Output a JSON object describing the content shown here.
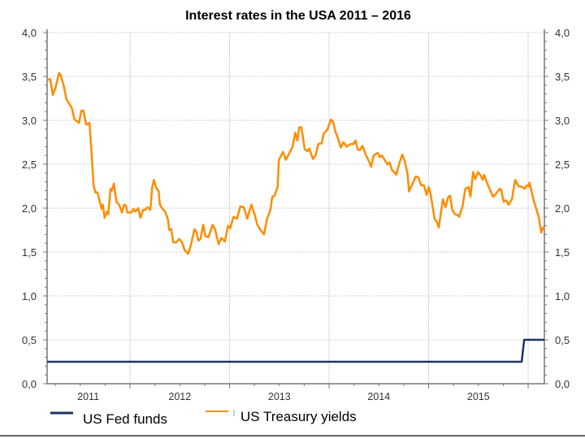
{
  "chart_data": {
    "type": "line",
    "title": "Interest rates in the USA 2011 – 2016",
    "xlabel": "",
    "ylabel": "",
    "xlim": [
      2011.167,
      2016.163
    ],
    "ylim": [
      0,
      4
    ],
    "grid": true,
    "legend_position": "bottom-left",
    "y_ticks": [
      "0,0",
      "0,5",
      "1,0",
      "1,5",
      "2,0",
      "2,5",
      "3,0",
      "3,5",
      "4,0"
    ],
    "y_tick_values": [
      0,
      0.5,
      1,
      1.5,
      2,
      2.5,
      3,
      3.5,
      4
    ],
    "x_tick_labels": [
      "2011",
      "2012",
      "2013",
      "2014",
      "2015"
    ],
    "x_label_positions": [
      2011.58,
      2012.5,
      2013.5,
      2014.5,
      2015.5
    ],
    "x_gridlines": [
      2012,
      2013,
      2014,
      2015,
      2016
    ],
    "colors": {
      "fed": "#1b3560",
      "treasury": "#ff8c00",
      "grid": "#c8c8c8",
      "axis": "#777777"
    },
    "series": [
      {
        "name": "US Fed funds",
        "color": "#1b3560",
        "points": [
          [
            2011.167,
            0.25
          ],
          [
            2015.935,
            0.25
          ],
          [
            2015.96,
            0.5
          ],
          [
            2016.163,
            0.5
          ]
        ]
      },
      {
        "name": "US Treasury yields",
        "color": "#ff8c00",
        "points": [
          [
            2011.167,
            3.46
          ],
          [
            2011.198,
            3.47
          ],
          [
            2011.224,
            3.29
          ],
          [
            2011.251,
            3.37
          ],
          [
            2011.287,
            3.54
          ],
          [
            2011.306,
            3.51
          ],
          [
            2011.333,
            3.4
          ],
          [
            2011.361,
            3.24
          ],
          [
            2011.415,
            3.14
          ],
          [
            2011.442,
            3.01
          ],
          [
            2011.488,
            2.97
          ],
          [
            2011.51,
            3.11
          ],
          [
            2011.532,
            3.11
          ],
          [
            2011.559,
            2.95
          ],
          [
            2011.592,
            2.97
          ],
          [
            2011.614,
            2.61
          ],
          [
            2011.633,
            2.27
          ],
          [
            2011.651,
            2.18
          ],
          [
            2011.673,
            2.18
          ],
          [
            2011.714,
            1.99
          ],
          [
            2011.728,
            2.04
          ],
          [
            2011.744,
            1.89
          ],
          [
            2011.769,
            1.96
          ],
          [
            2011.782,
            1.93
          ],
          [
            2011.804,
            2.22
          ],
          [
            2011.818,
            2.2
          ],
          [
            2011.837,
            2.28
          ],
          [
            2011.864,
            2.07
          ],
          [
            2011.891,
            2.04
          ],
          [
            2011.918,
            1.95
          ],
          [
            2011.94,
            2.04
          ],
          [
            2011.959,
            2.03
          ],
          [
            2011.973,
            1.95
          ],
          [
            2012.014,
            1.95
          ],
          [
            2012.033,
            1.99
          ],
          [
            2012.055,
            1.96
          ],
          [
            2012.082,
            2.0
          ],
          [
            2012.104,
            1.89
          ],
          [
            2012.131,
            1.98
          ],
          [
            2012.149,
            1.98
          ],
          [
            2012.177,
            2.01
          ],
          [
            2012.204,
            1.98
          ],
          [
            2012.223,
            2.24
          ],
          [
            2012.239,
            2.32
          ],
          [
            2012.267,
            2.22
          ],
          [
            2012.286,
            2.2
          ],
          [
            2012.3,
            2.04
          ],
          [
            2012.327,
            1.99
          ],
          [
            2012.353,
            1.96
          ],
          [
            2012.381,
            1.87
          ],
          [
            2012.394,
            1.75
          ],
          [
            2012.414,
            1.76
          ],
          [
            2012.435,
            1.61
          ],
          [
            2012.463,
            1.61
          ],
          [
            2012.496,
            1.65
          ],
          [
            2012.522,
            1.61
          ],
          [
            2012.549,
            1.52
          ],
          [
            2012.585,
            1.48
          ],
          [
            2012.612,
            1.58
          ],
          [
            2012.647,
            1.76
          ],
          [
            2012.667,
            1.73
          ],
          [
            2012.686,
            1.63
          ],
          [
            2012.708,
            1.65
          ],
          [
            2012.735,
            1.81
          ],
          [
            2012.757,
            1.68
          ],
          [
            2012.789,
            1.67
          ],
          [
            2012.83,
            1.81
          ],
          [
            2012.857,
            1.75
          ],
          [
            2012.89,
            1.59
          ],
          [
            2012.917,
            1.66
          ],
          [
            2012.953,
            1.62
          ],
          [
            2012.985,
            1.8
          ],
          [
            2013.007,
            1.77
          ],
          [
            2013.039,
            1.9
          ],
          [
            2013.075,
            1.88
          ],
          [
            2013.108,
            2.02
          ],
          [
            2013.143,
            2.01
          ],
          [
            2013.178,
            1.88
          ],
          [
            2013.219,
            2.04
          ],
          [
            2013.251,
            1.93
          ],
          [
            2013.279,
            1.81
          ],
          [
            2013.312,
            1.75
          ],
          [
            2013.347,
            1.7
          ],
          [
            2013.374,
            1.87
          ],
          [
            2013.41,
            1.98
          ],
          [
            2013.429,
            2.13
          ],
          [
            2013.451,
            2.14
          ],
          [
            2013.483,
            2.24
          ],
          [
            2013.496,
            2.55
          ],
          [
            2013.537,
            2.64
          ],
          [
            2013.565,
            2.55
          ],
          [
            2013.606,
            2.64
          ],
          [
            2013.633,
            2.7
          ],
          [
            2013.66,
            2.86
          ],
          [
            2013.682,
            2.77
          ],
          [
            2013.7,
            2.92
          ],
          [
            2013.722,
            2.92
          ],
          [
            2013.755,
            2.67
          ],
          [
            2013.782,
            2.65
          ],
          [
            2013.802,
            2.68
          ],
          [
            2013.837,
            2.56
          ],
          [
            2013.864,
            2.6
          ],
          [
            2013.891,
            2.73
          ],
          [
            2013.927,
            2.74
          ],
          [
            2013.945,
            2.85
          ],
          [
            2013.981,
            2.89
          ],
          [
            2014.019,
            3.01
          ],
          [
            2014.041,
            2.98
          ],
          [
            2014.063,
            2.87
          ],
          [
            2014.082,
            2.82
          ],
          [
            2014.117,
            2.69
          ],
          [
            2014.144,
            2.75
          ],
          [
            2014.177,
            2.7
          ],
          [
            2014.218,
            2.73
          ],
          [
            2014.245,
            2.73
          ],
          [
            2014.267,
            2.77
          ],
          [
            2014.286,
            2.67
          ],
          [
            2014.308,
            2.66
          ],
          [
            2014.335,
            2.71
          ],
          [
            2014.367,
            2.61
          ],
          [
            2014.394,
            2.55
          ],
          [
            2014.422,
            2.47
          ],
          [
            2014.449,
            2.6
          ],
          [
            2014.49,
            2.63
          ],
          [
            2014.509,
            2.58
          ],
          [
            2014.531,
            2.6
          ],
          [
            2014.558,
            2.55
          ],
          [
            2014.585,
            2.5
          ],
          [
            2014.607,
            2.52
          ],
          [
            2014.634,
            2.43
          ],
          [
            2014.653,
            2.41
          ],
          [
            2014.675,
            2.38
          ],
          [
            2014.708,
            2.52
          ],
          [
            2014.735,
            2.61
          ],
          [
            2014.762,
            2.53
          ],
          [
            2014.789,
            2.38
          ],
          [
            2014.803,
            2.19
          ],
          [
            2014.871,
            2.36
          ],
          [
            2014.898,
            2.35
          ],
          [
            2014.925,
            2.26
          ],
          [
            2014.953,
            2.26
          ],
          [
            2014.98,
            2.15
          ],
          [
            2015.002,
            2.24
          ],
          [
            2015.02,
            2.16
          ],
          [
            2015.061,
            1.87
          ],
          [
            2015.08,
            1.85
          ],
          [
            2015.102,
            1.78
          ],
          [
            2015.143,
            2.1
          ],
          [
            2015.17,
            2.01
          ],
          [
            2015.198,
            2.13
          ],
          [
            2015.216,
            2.14
          ],
          [
            2015.238,
            1.98
          ],
          [
            2015.265,
            1.93
          ],
          [
            2015.292,
            1.92
          ],
          [
            2015.306,
            1.9
          ],
          [
            2015.341,
            2.02
          ],
          [
            2015.369,
            2.22
          ],
          [
            2015.402,
            2.24
          ],
          [
            2015.42,
            2.13
          ],
          [
            2015.447,
            2.41
          ],
          [
            2015.469,
            2.33
          ],
          [
            2015.496,
            2.41
          ],
          [
            2015.524,
            2.37
          ],
          [
            2015.543,
            2.32
          ],
          [
            2015.559,
            2.38
          ],
          [
            2015.586,
            2.29
          ],
          [
            2015.647,
            2.13
          ],
          [
            2015.673,
            2.16
          ],
          [
            2015.714,
            2.22
          ],
          [
            2015.728,
            2.21
          ],
          [
            2015.755,
            2.07
          ],
          [
            2015.777,
            2.09
          ],
          [
            2015.804,
            2.04
          ],
          [
            2015.837,
            2.1
          ],
          [
            2015.869,
            2.32
          ],
          [
            2015.904,
            2.25
          ],
          [
            2015.945,
            2.24
          ],
          [
            2015.967,
            2.22
          ],
          [
            2015.986,
            2.26
          ],
          [
            2016.006,
            2.25
          ],
          [
            2016.014,
            2.29
          ],
          [
            2016.055,
            2.09
          ],
          [
            2016.082,
            1.99
          ],
          [
            2016.108,
            1.89
          ],
          [
            2016.131,
            1.72
          ],
          [
            2016.149,
            1.78
          ],
          [
            2016.163,
            1.76
          ]
        ]
      }
    ]
  }
}
